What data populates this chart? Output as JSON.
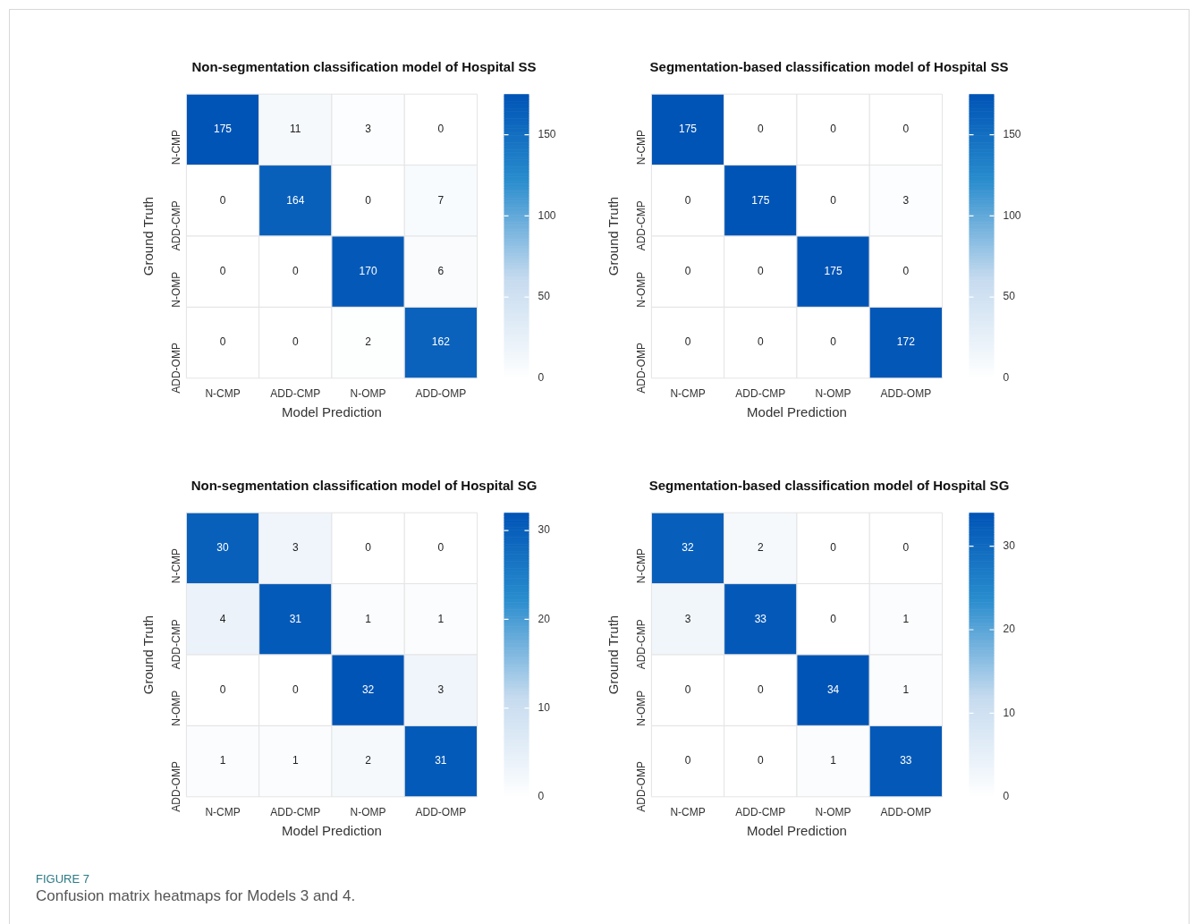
{
  "chart_data": [
    {
      "type": "heatmap",
      "title": "Non-segmentation classification model of Hospital SS",
      "xlabel": "Model Prediction",
      "ylabel": "Ground Truth",
      "categories": [
        "N-CMP",
        "ADD-CMP",
        "N-OMP",
        "ADD-OMP"
      ],
      "y_categories": [
        "N-CMP",
        "ADD-CMP",
        "N-OMP",
        "ADD-OMP"
      ],
      "cells": [
        [
          175,
          11,
          3,
          0
        ],
        [
          0,
          164,
          0,
          7
        ],
        [
          0,
          0,
          170,
          6
        ],
        [
          0,
          0,
          2,
          162
        ]
      ],
      "clim": [
        0,
        175
      ],
      "cticks": [
        0,
        50,
        100,
        150
      ],
      "data_labels": true
    },
    {
      "type": "heatmap",
      "title": "Segmentation-based classification model of Hospital SS",
      "xlabel": "Model Prediction",
      "ylabel": "Ground Truth",
      "categories": [
        "N-CMP",
        "ADD-CMP",
        "N-OMP",
        "ADD-OMP"
      ],
      "y_categories": [
        "N-CMP",
        "ADD-CMP",
        "N-OMP",
        "ADD-OMP"
      ],
      "cells": [
        [
          175,
          0,
          0,
          0
        ],
        [
          0,
          175,
          0,
          3
        ],
        [
          0,
          0,
          175,
          0
        ],
        [
          0,
          0,
          0,
          172
        ]
      ],
      "clim": [
        0,
        175
      ],
      "cticks": [
        0,
        50,
        100,
        150
      ],
      "data_labels": true
    },
    {
      "type": "heatmap",
      "title": "Non-segmentation classification model of Hospital SG",
      "xlabel": "Model Prediction",
      "ylabel": "Ground Truth",
      "categories": [
        "N-CMP",
        "ADD-CMP",
        "N-OMP",
        "ADD-OMP"
      ],
      "y_categories": [
        "N-CMP",
        "ADD-CMP",
        "N-OMP",
        "ADD-OMP"
      ],
      "cells": [
        [
          30,
          3,
          0,
          0
        ],
        [
          4,
          31,
          1,
          1
        ],
        [
          0,
          0,
          32,
          3
        ],
        [
          1,
          1,
          2,
          31
        ]
      ],
      "clim": [
        0,
        32
      ],
      "cticks": [
        0,
        10,
        20,
        30
      ],
      "data_labels": true
    },
    {
      "type": "heatmap",
      "title": "Segmentation-based classification model of Hospital SG",
      "xlabel": "Model Prediction",
      "ylabel": "Ground Truth",
      "categories": [
        "N-CMP",
        "ADD-CMP",
        "N-OMP",
        "ADD-OMP"
      ],
      "y_categories": [
        "N-CMP",
        "ADD-CMP",
        "N-OMP",
        "ADD-OMP"
      ],
      "cells": [
        [
          32,
          2,
          0,
          0
        ],
        [
          3,
          33,
          0,
          1
        ],
        [
          0,
          0,
          34,
          1
        ],
        [
          0,
          0,
          1,
          33
        ]
      ],
      "clim": [
        0,
        34
      ],
      "cticks": [
        0,
        10,
        20,
        30
      ],
      "data_labels": true,
      "annotations": [
        "FIGURE 7",
        "Confusion matrix heatmaps for Models 3 and 4."
      ]
    }
  ]
}
